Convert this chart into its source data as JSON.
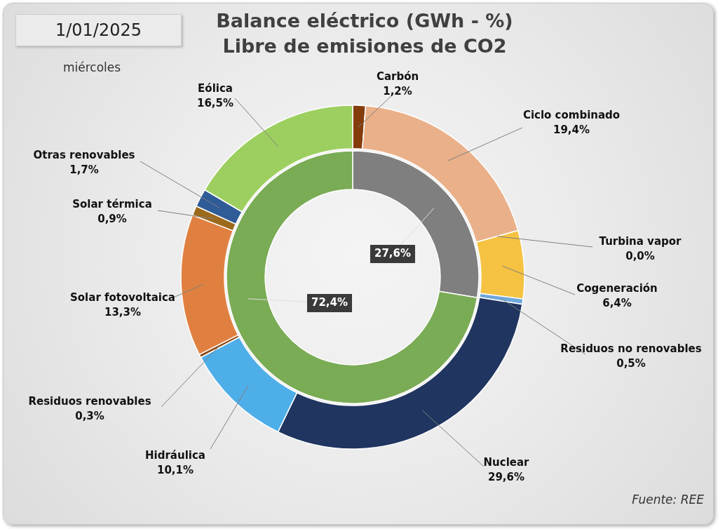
{
  "chart_data": [
    {
      "type": "donut",
      "title": "Balance eléctrico (GWh - %)",
      "subtitle": "Libre de emisiones de CO2",
      "categories": [
        "Carbón",
        "Ciclo combinado",
        "Turbina vapor",
        "Cogeneración",
        "Residuos no renovables",
        "Nuclear",
        "Hidráulica",
        "Residuos renovables",
        "Solar fotovoltaica",
        "Solar térmica",
        "Otras renovables",
        "Eólica"
      ],
      "values": [
        1.2,
        19.4,
        0.0,
        6.4,
        0.5,
        29.6,
        10.1,
        0.3,
        13.3,
        0.9,
        1.7,
        16.5
      ],
      "value_labels": [
        "1,2%",
        "19,4%",
        "0,0%",
        "6,4%",
        "0,5%",
        "29,6%",
        "10,1%",
        "0,3%",
        "13,3%",
        "0,9%",
        "1,7%",
        "16,5%"
      ],
      "colors": [
        "#843c0c",
        "#eab089",
        "#d9d9d9",
        "#f5c242",
        "#6fa8dc",
        "#203560",
        "#4eaee8",
        "#8b4513",
        "#e08040",
        "#9c6a1c",
        "#2f5b97",
        "#9dcf60"
      ],
      "annotations": [
        "1/01/2025",
        "miércoles",
        "Fuente: REE"
      ],
      "legend": false
    },
    {
      "type": "donut",
      "categories": [
        null,
        null
      ],
      "values": [
        27.6,
        72.4
      ],
      "value_labels": [
        "27,6%",
        "72,4%"
      ],
      "colors": [
        "#7f7f7f",
        "#7aab55"
      ],
      "legend": false
    }
  ]
}
